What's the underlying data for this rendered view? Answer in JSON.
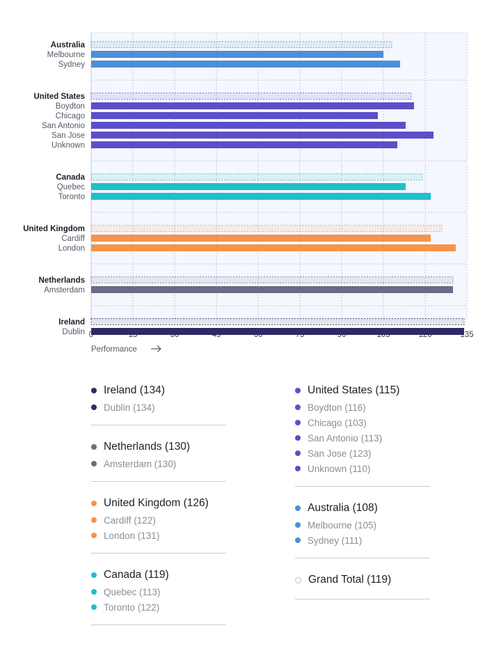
{
  "chart_data": {
    "type": "bar",
    "orientation": "horizontal",
    "xlabel": "Performance",
    "xlim": [
      0,
      135
    ],
    "xticks": [
      0,
      15,
      30,
      45,
      60,
      75,
      90,
      105,
      120,
      135
    ],
    "grid": true,
    "groups": [
      {
        "name": "Australia",
        "total": 108,
        "color": "#4d8fd6",
        "items": [
          {
            "name": "Melbourne",
            "value": 105
          },
          {
            "name": "Sydney",
            "value": 111
          }
        ]
      },
      {
        "name": "United States",
        "total": 115,
        "color": "#5b4fc9",
        "items": [
          {
            "name": "Boydton",
            "value": 116
          },
          {
            "name": "Chicago",
            "value": 103
          },
          {
            "name": "San Antonio",
            "value": 113
          },
          {
            "name": "San Jose",
            "value": 123
          },
          {
            "name": "Unknown",
            "value": 110
          }
        ]
      },
      {
        "name": "Canada",
        "total": 119,
        "color": "#1fbfcc",
        "items": [
          {
            "name": "Quebec",
            "value": 113
          },
          {
            "name": "Toronto",
            "value": 122
          }
        ]
      },
      {
        "name": "United Kingdom",
        "total": 126,
        "color": "#f7934a",
        "items": [
          {
            "name": "Cardiff",
            "value": 122
          },
          {
            "name": "London",
            "value": 131
          }
        ]
      },
      {
        "name": "Netherlands",
        "total": 130,
        "color": "#6a6c87",
        "items": [
          {
            "name": "Amsterdam",
            "value": 130
          }
        ]
      },
      {
        "name": "Ireland",
        "total": 134,
        "color": "#2e2a66",
        "items": [
          {
            "name": "Dublin",
            "value": 134
          }
        ]
      }
    ]
  },
  "legend": {
    "left": [
      {
        "label": "Ireland (134)",
        "color": "#2e2a66",
        "items": [
          "Dublin (134)"
        ]
      },
      {
        "label": "Netherlands (130)",
        "color": "#6a6c87",
        "items": [
          "Amsterdam (130)"
        ]
      },
      {
        "label": "United Kingdom (126)",
        "color": "#f7934a",
        "items": [
          "Cardiff (122)",
          "London (131)"
        ]
      },
      {
        "label": "Canada (119)",
        "color": "#1fbfcc",
        "items": [
          "Quebec (113)",
          "Toronto (122)"
        ]
      }
    ],
    "right": [
      {
        "label": "United States (115)",
        "color": "#5b4fc9",
        "items": [
          "Boydton (116)",
          "Chicago (103)",
          "San Antonio (113)",
          "San Jose (123)",
          "Unknown (110)"
        ]
      },
      {
        "label": "Australia (108)",
        "color": "#4d8fd6",
        "items": [
          "Melbourne (105)",
          "Sydney (111)"
        ]
      },
      {
        "label": "Grand Total (119)",
        "color": "",
        "items": []
      }
    ]
  }
}
